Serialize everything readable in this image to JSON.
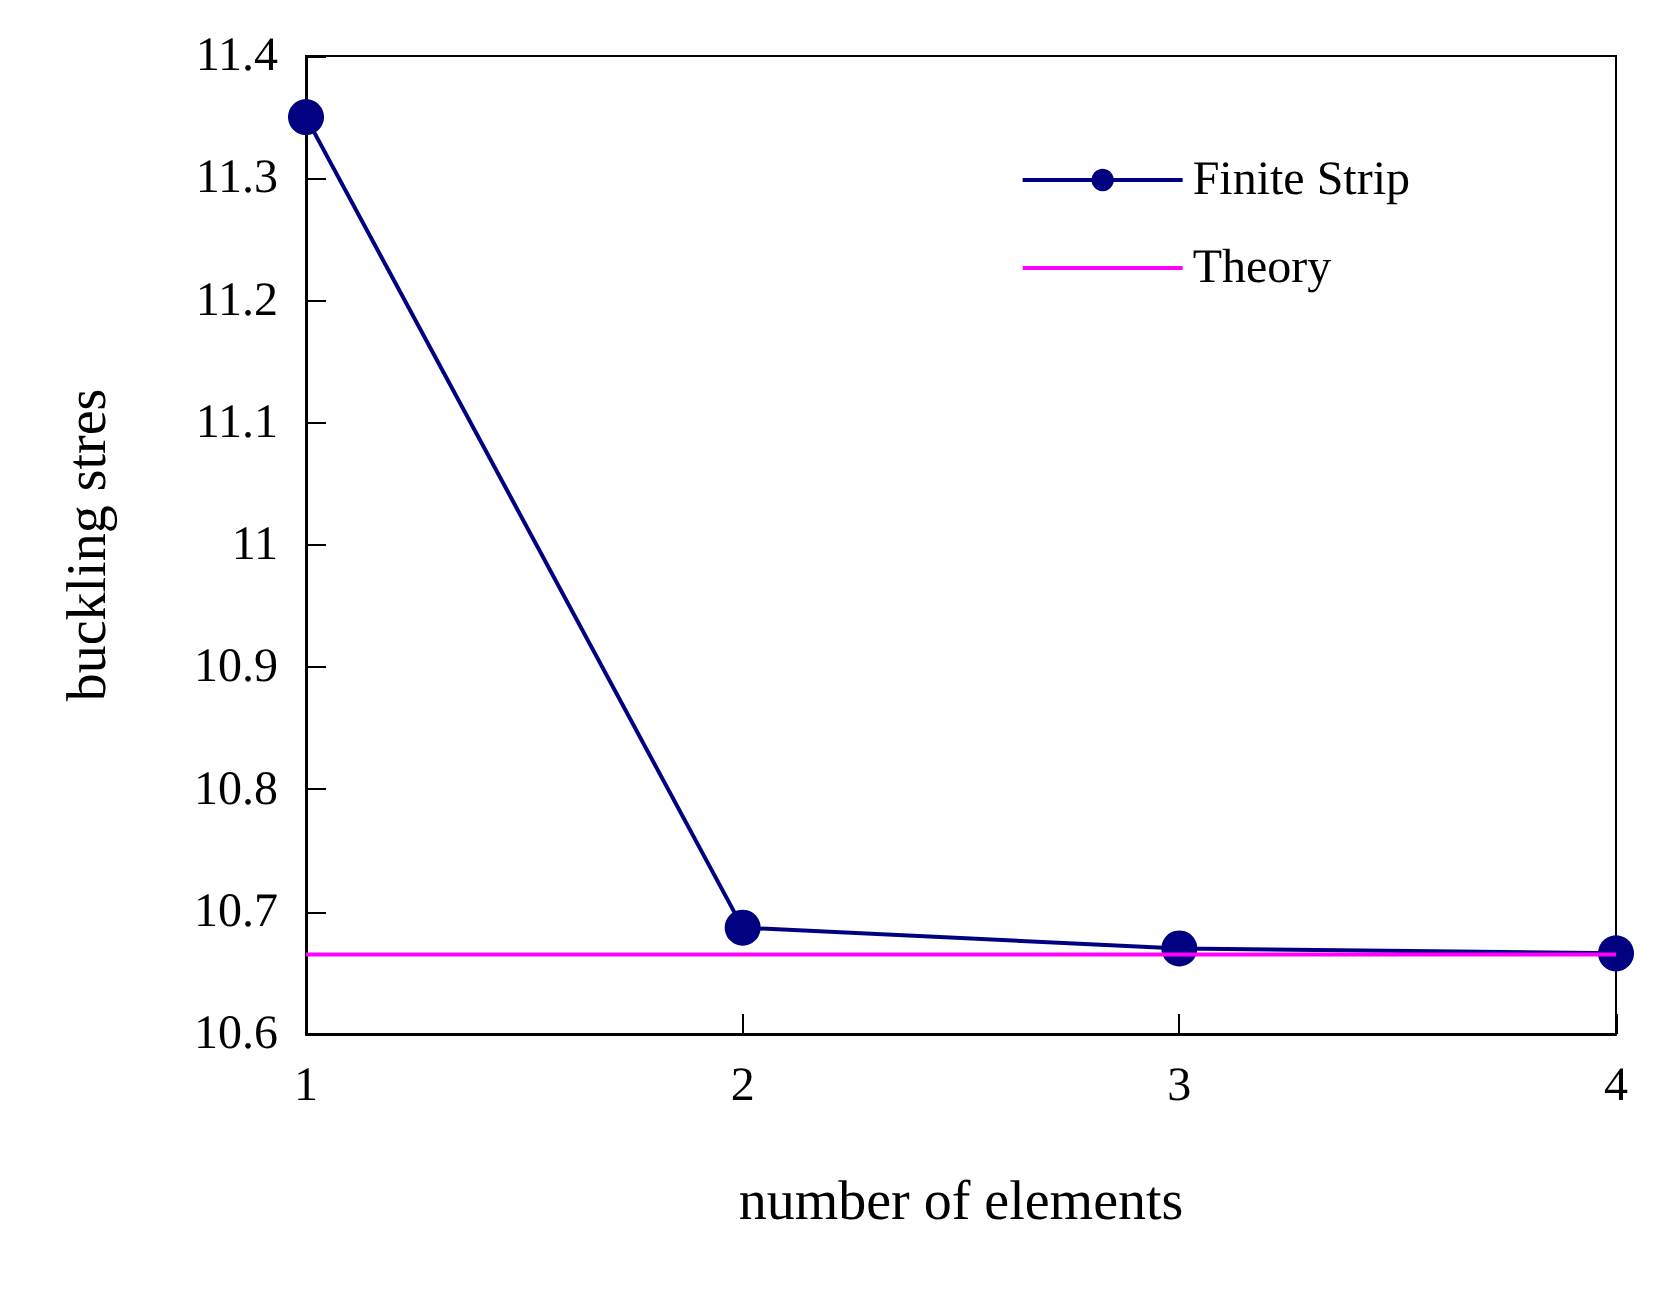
{
  "chart_data": {
    "type": "line",
    "xlabel": "number of elements",
    "ylabel": "buckling stres",
    "series": [
      {
        "name": "Finite Strip",
        "color": "#000080",
        "x": [
          1,
          2,
          3,
          4
        ],
        "values": [
          11.35,
          10.687,
          10.67,
          10.666
        ],
        "marker": "circle"
      },
      {
        "name": "Theory",
        "color": "#ff00ff",
        "x": [
          1,
          4
        ],
        "values": [
          10.665,
          10.665
        ],
        "marker": "none"
      }
    ],
    "xlim": [
      1,
      4
    ],
    "xticks": [
      1,
      2,
      3,
      4
    ],
    "ylim": [
      10.6,
      11.4
    ],
    "yticks": [
      10.6,
      10.7,
      10.8,
      10.9,
      11,
      11.1,
      11.2,
      11.3,
      11.4
    ],
    "grid": false,
    "legend": "top right",
    "line_style": "solid"
  }
}
